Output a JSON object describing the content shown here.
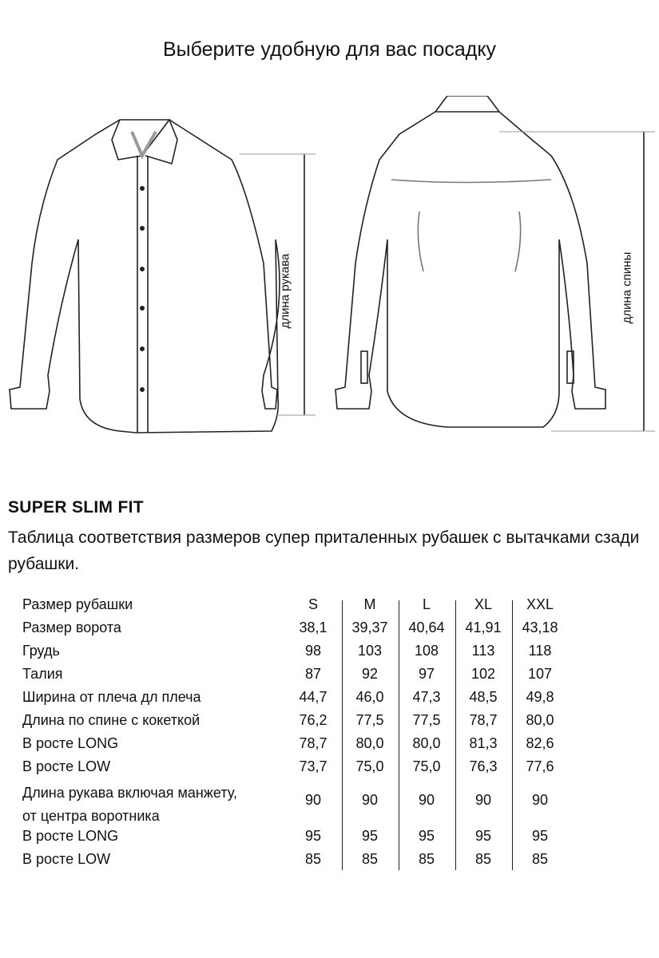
{
  "title": "Выберите удобную для вас посадку",
  "diagram": {
    "sleeve_label": "длина рукава",
    "back_label": "длина спины"
  },
  "fit_name": "SUPER SLIM FIT",
  "description": "Таблица соответствия размеров супер приталенных рубашек с вытачками сзади рубашки.",
  "table": {
    "header": {
      "label": "Размер рубашки",
      "values": [
        "S",
        "M",
        "L",
        "XL",
        "XXL"
      ]
    },
    "rows": [
      {
        "label": "Размер ворота",
        "values": [
          "38,1",
          "39,37",
          "40,64",
          "41,91",
          "43,18"
        ]
      },
      {
        "label": "Грудь",
        "values": [
          "98",
          "103",
          "108",
          "113",
          "118"
        ]
      },
      {
        "label": "Талия",
        "values": [
          "87",
          "92",
          "97",
          "102",
          "107"
        ]
      },
      {
        "label": "Ширина от плеча дл плеча",
        "values": [
          "44,7",
          "46,0",
          "47,3",
          "48,5",
          "49,8"
        ]
      },
      {
        "label": "Длина по спине с кокеткой",
        "values": [
          "76,2",
          "77,5",
          "77,5",
          "78,7",
          "80,0"
        ]
      },
      {
        "label": "В росте LONG",
        "values": [
          "78,7",
          "80,0",
          "80,0",
          "81,3",
          "82,6"
        ]
      },
      {
        "label": "В росте LOW",
        "values": [
          "73,7",
          "75,0",
          "75,0",
          "76,3",
          "77,6"
        ]
      },
      {
        "label_line1": "Длина рукава включая манжету,",
        "label_line2": "от центра воротника",
        "values": [
          "90",
          "90",
          "90",
          "90",
          "90"
        ]
      },
      {
        "label": "В росте LONG",
        "values": [
          "95",
          "95",
          "95",
          "95",
          "95"
        ]
      },
      {
        "label": "В росте LOW",
        "values": [
          "85",
          "85",
          "85",
          "85",
          "85"
        ]
      }
    ]
  }
}
